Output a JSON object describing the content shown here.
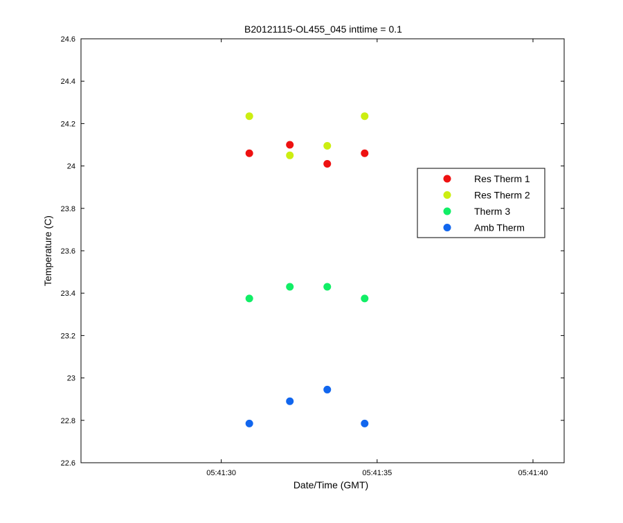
{
  "chart_data": {
    "type": "scatter",
    "title": "B20121115-OL455_045 inttime = 0.1",
    "xlabel": "Date/Time (GMT)",
    "ylabel": "Temperature (C)",
    "xlim": [
      "05:41:25.5",
      "05:41:41"
    ],
    "ylim": [
      22.6,
      24.6
    ],
    "x_ticks": [
      "05:41:30",
      "05:41:35",
      "05:41:40"
    ],
    "y_ticks": [
      22.6,
      22.8,
      23,
      23.2,
      23.4,
      23.6,
      23.8,
      24,
      24.2,
      24.4,
      24.6
    ],
    "grid": false,
    "legend_position": "right",
    "x": [
      "05:41:30.9",
      "05:41:32.2",
      "05:41:33.4",
      "05:41:34.6"
    ],
    "series": [
      {
        "name": "Res Therm 1",
        "color": "#ee1111",
        "values": [
          24.06,
          24.1,
          24.01,
          24.06
        ]
      },
      {
        "name": "Res Therm 2",
        "color": "#ccee11",
        "values": [
          24.235,
          24.05,
          24.095,
          24.235
        ]
      },
      {
        "name": "Therm 3",
        "color": "#11ee66",
        "values": [
          23.375,
          23.43,
          23.43,
          23.375
        ]
      },
      {
        "name": "Amb Therm",
        "color": "#1166ee",
        "values": [
          22.785,
          22.89,
          22.945,
          22.785
        ]
      }
    ]
  }
}
